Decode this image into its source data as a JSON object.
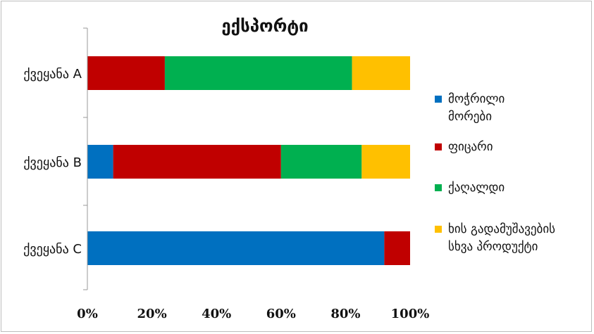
{
  "chart_data": {
    "type": "bar",
    "orientation": "horizontal",
    "stacked": true,
    "percent": true,
    "title": "ექსპორტი",
    "xlabel": "",
    "ylabel": "",
    "xlim": [
      0,
      100
    ],
    "ticks": [
      "0%",
      "20%",
      "40%",
      "60%",
      "80%",
      "100%"
    ],
    "tick_values": [
      0,
      20,
      40,
      60,
      80,
      100
    ],
    "categories": [
      "ქვეყანა A",
      "ქვეყანა B",
      "ქვეყანა C"
    ],
    "series": [
      {
        "name": "მოჭრილი მორები",
        "color": "#0070c0",
        "values": [
          0,
          8,
          92
        ]
      },
      {
        "name": "ფიცარი",
        "color": "#c00000",
        "values": [
          24,
          52,
          8
        ]
      },
      {
        "name": "ქაღალდი",
        "color": "#00b050",
        "values": [
          58,
          25,
          0
        ]
      },
      {
        "name": "ხის გადამუშავების სხვა პროდუქტი",
        "color": "#ffc000",
        "values": [
          18,
          15,
          0
        ]
      }
    ],
    "legend_position": "right",
    "grid": false
  },
  "legend": {
    "lines": [
      [
        "მოჭრილი",
        "მორები"
      ],
      [
        "ფიცარი"
      ],
      [
        "ქაღალდი"
      ],
      [
        "ხის გადამუშავების",
        "სხვა პროდუქტი"
      ]
    ]
  }
}
